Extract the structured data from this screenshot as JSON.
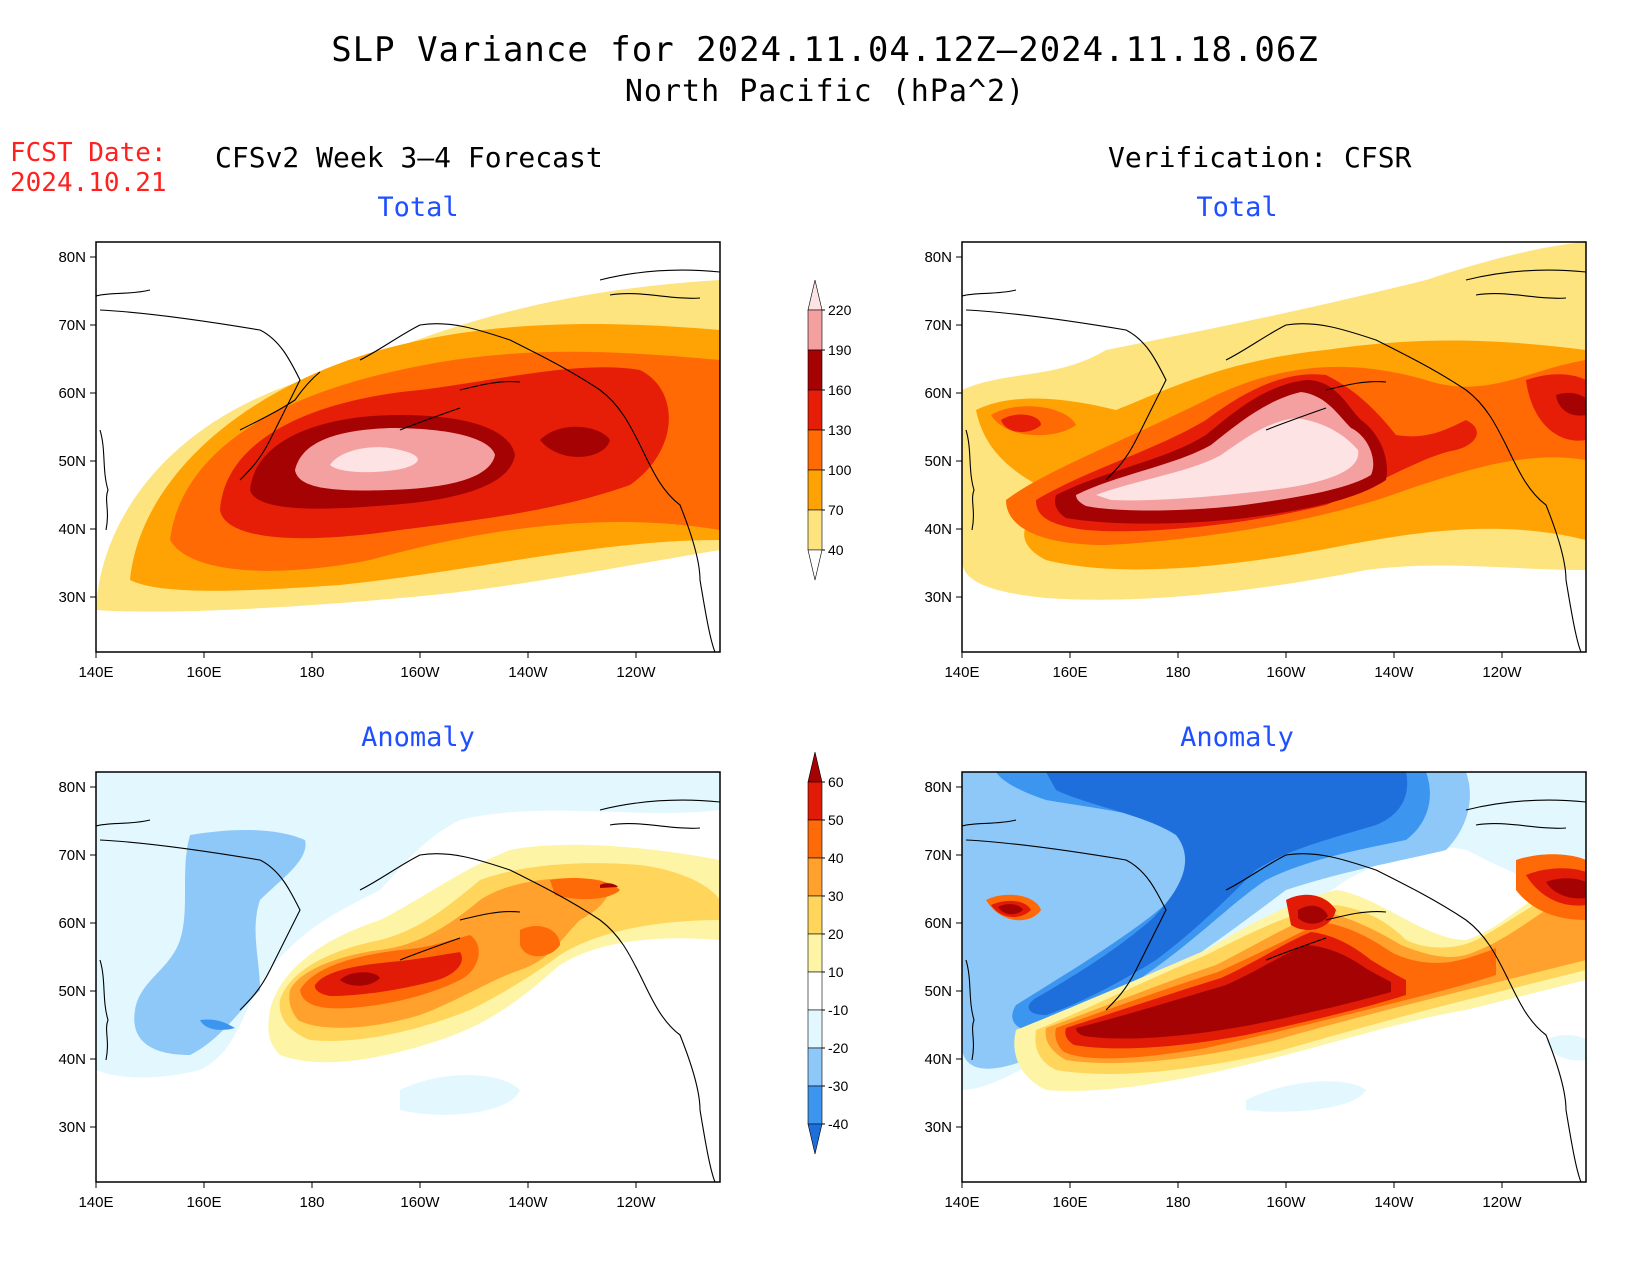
{
  "title": "SLP Variance for 2024.11.04.12Z–2024.11.18.06Z",
  "subtitle": "North Pacific (hPa^2)",
  "fcst_date": {
    "label": "FCST Date:",
    "value": "2024.10.21"
  },
  "columns": {
    "forecast": "CFSv2 Week 3–4 Forecast",
    "verification": "Verification: CFSR"
  },
  "panels": {
    "forecast_total": {
      "label": "Total"
    },
    "verification_total": {
      "label": "Total"
    },
    "forecast_anomaly": {
      "label": "Anomaly"
    },
    "verification_anomaly": {
      "label": "Anomaly"
    }
  },
  "axes": {
    "lon_ticks": [
      "140E",
      "160E",
      "180",
      "160W",
      "140W",
      "120W"
    ],
    "lat_ticks": [
      "30N",
      "40N",
      "50N",
      "60N",
      "70N",
      "80N"
    ]
  },
  "total_colorbar": {
    "levels": [
      "40",
      "70",
      "100",
      "130",
      "160",
      "190",
      "220"
    ],
    "colors": [
      "#fde47f",
      "#ffa304",
      "#ff6a04",
      "#e61e08",
      "#a50303",
      "#f4a0a0",
      "#fde3e3"
    ]
  },
  "anomaly_colorbar": {
    "levels": [
      "-40",
      "-30",
      "-20",
      "-10",
      "10",
      "20",
      "30",
      "40",
      "50",
      "60"
    ],
    "colors": [
      "#1e6fdc",
      "#3c96f0",
      "#8ec8f8",
      "#e2f8fe",
      "#ffffff",
      "#fdf5a5",
      "#ffd55c",
      "#ffa12c",
      "#ff6a08",
      "#e11b06",
      "#a50303"
    ]
  }
}
